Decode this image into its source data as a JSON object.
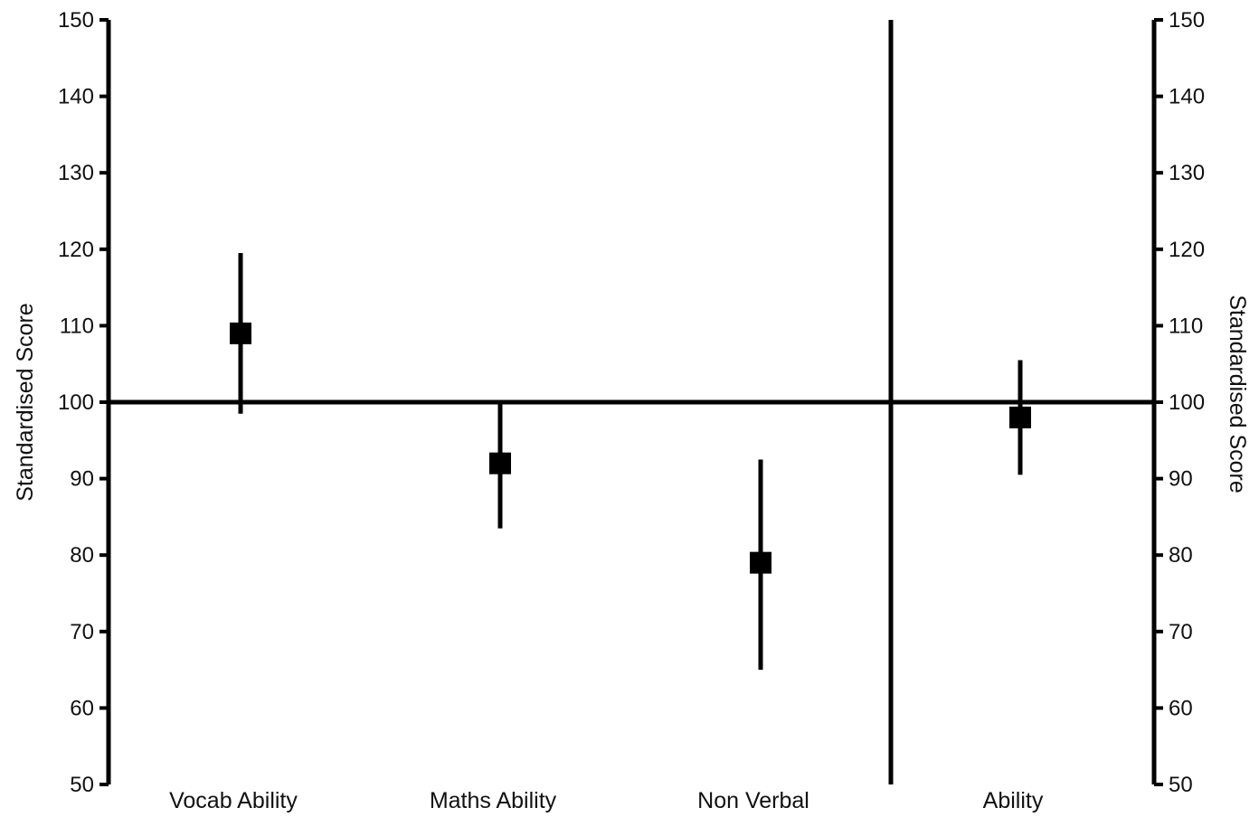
{
  "chart_data": {
    "type": "scatter",
    "title": "",
    "xlabel": "",
    "ylabel": "Standardised Score",
    "ylabel_right": "Standardised Score",
    "ylim": [
      50,
      150
    ],
    "yticks": [
      50,
      60,
      70,
      80,
      90,
      100,
      110,
      120,
      130,
      140,
      150
    ],
    "reference_line": 100,
    "grid": false,
    "legend": "none",
    "categories": [
      "Vocab Ability",
      "Maths Ability",
      "Non Verbal",
      "Ability"
    ],
    "points": [
      {
        "category": "Vocab Ability",
        "value": 109,
        "low": 98.5,
        "high": 119.5
      },
      {
        "category": "Maths Ability",
        "value": 92,
        "low": 83.5,
        "high": 100
      },
      {
        "category": "Non Verbal",
        "value": 79,
        "low": 65,
        "high": 92.5
      },
      {
        "category": "Ability",
        "value": 98,
        "low": 90.5,
        "high": 105.5
      }
    ],
    "separator_after": "Non Verbal",
    "color": "#000000"
  }
}
